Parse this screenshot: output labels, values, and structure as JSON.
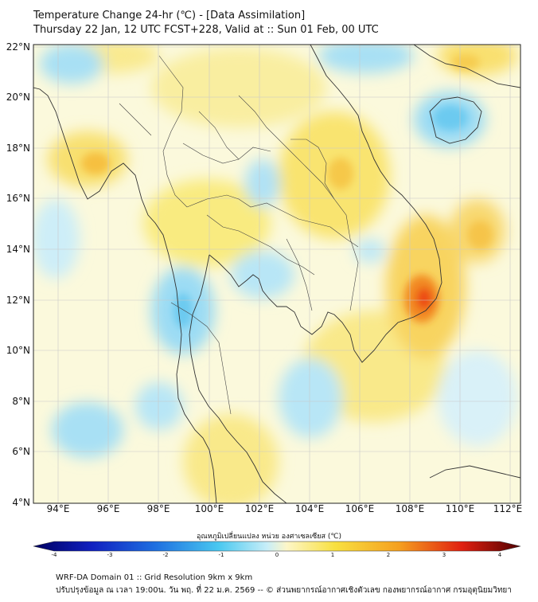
{
  "header": {
    "title_line1": "Temperature Change 24-hr (℃) - [Data Assimilation]",
    "title_line2": "Thursday 22 Jan, 12 UTC FCST+228, Valid at :: Sun 01 Feb, 00 UTC"
  },
  "map": {
    "lat_labels": [
      "22°N",
      "20°N",
      "18°N",
      "16°N",
      "14°N",
      "12°N",
      "10°N",
      "8°N",
      "6°N",
      "4°N"
    ],
    "lon_labels": [
      "94°E",
      "96°E",
      "98°E",
      "100°E",
      "102°E",
      "104°E",
      "106°E",
      "108°E",
      "110°E",
      "112°E"
    ],
    "colors": {
      "cold": "#1e90ff",
      "cool": "#7fd3f3",
      "neutral": "#fdfbe4",
      "warm": "#f8e35a",
      "hot": "#f07a1c",
      "very_hot": "#e82a10"
    }
  },
  "colorbar": {
    "title": "อุณหภูมิเปลี่ยนแปลง หน่วย องศาเซลเซียส (℃)",
    "ticks": [
      "-4",
      "-3",
      "-2",
      "-1",
      "0",
      "1",
      "2",
      "3",
      "4"
    ]
  },
  "footer": {
    "line1": "WRF-DA Domain 01 :: Grid Resolution 9km x 9km",
    "line2": "ปรับปรุงข้อมูล ณ เวลา 19:00น. วัน พฤ. ที่ 22 ม.ค. 2569 -- © ส่วนพยากรณ์อากาศเชิงตัวเลข กองพยากรณ์อากาศ กรมอุตุนิยมวิทยา"
  }
}
